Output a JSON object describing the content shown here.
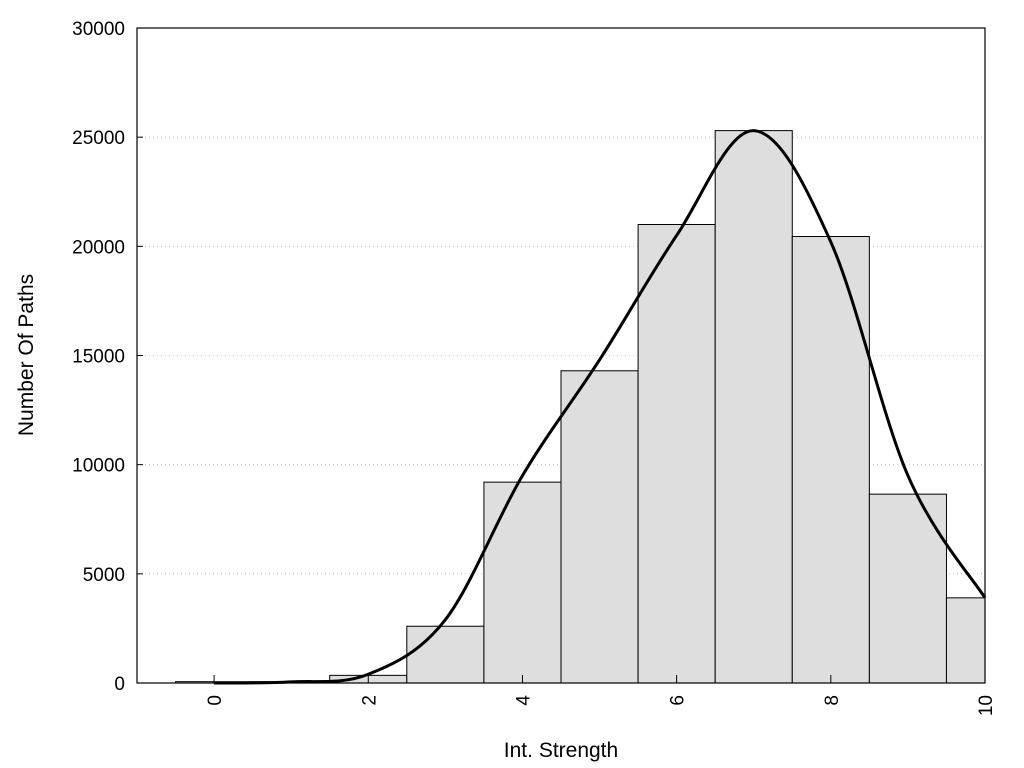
{
  "chart_data": {
    "type": "bar",
    "title": "",
    "xlabel": "Int. Strength",
    "ylabel": "Number Of Paths",
    "xlim": [
      -1,
      10
    ],
    "ylim": [
      0,
      30000
    ],
    "x_ticks": [
      0,
      2,
      4,
      6,
      8,
      10
    ],
    "x_tick_labels": [
      "0",
      "2",
      "4",
      "6",
      "8",
      "10"
    ],
    "y_ticks": [
      0,
      5000,
      10000,
      15000,
      20000,
      25000,
      30000
    ],
    "y_tick_labels": [
      "0",
      "5000",
      "10000",
      "15000",
      "20000",
      "25000",
      "30000"
    ],
    "grid": "horizontal-dotted",
    "bar_width": 1,
    "bar_color": "#dedede",
    "curve_color": "#000000",
    "bars": {
      "x": [
        0,
        1,
        2,
        3,
        4,
        5,
        6,
        7,
        8,
        9,
        10
      ],
      "values": [
        60,
        60,
        350,
        2600,
        9200,
        14300,
        21000,
        25300,
        20450,
        8650,
        3900
      ]
    },
    "curve": {
      "x": [
        0,
        1,
        2,
        3,
        4,
        5,
        6,
        7,
        8,
        9,
        10
      ],
      "values": [
        0,
        50,
        400,
        2900,
        9500,
        14800,
        20500,
        25300,
        20200,
        9500,
        3900
      ]
    }
  }
}
